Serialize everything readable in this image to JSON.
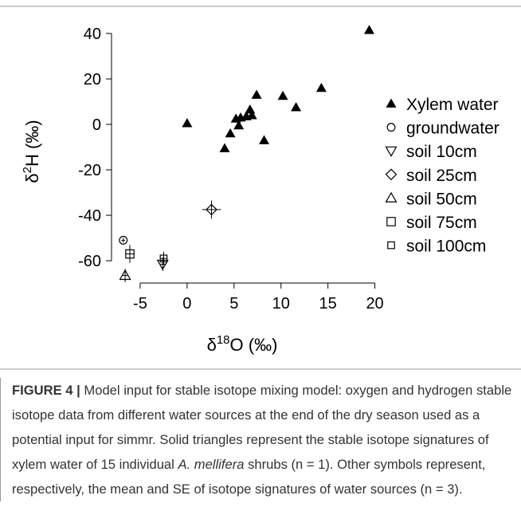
{
  "chart_data": {
    "type": "scatter",
    "x_label": {
      "prefix": "δ",
      "sup": "18",
      "suffix": "O (‰)"
    },
    "y_label": {
      "prefix": "δ",
      "sup": "2",
      "suffix": "H (‰)"
    },
    "xlim": [
      -8.05,
      20.8
    ],
    "ylim": [
      -69.8,
      44.2
    ],
    "xticks": [
      -5,
      0,
      5,
      10,
      15,
      20
    ],
    "yticks": [
      -60,
      -40,
      -20,
      0,
      20,
      40
    ],
    "series": [
      {
        "name": "Xylem water",
        "marker": "triangle-filled",
        "color": "#000000",
        "x": [
          0,
          4,
          4.6,
          5.2,
          5.5,
          5.7,
          6.3,
          6.7,
          6.9,
          7.4,
          8.2,
          10.2,
          11.6,
          14.3,
          19.4
        ],
        "values": [
          0.5,
          -10.5,
          -4,
          2.5,
          -0.5,
          3,
          3.5,
          6.5,
          4,
          13,
          -7,
          12.5,
          7.5,
          16,
          41.5
        ]
      },
      {
        "name": "groundwater",
        "marker": "circle",
        "color": "#000000",
        "x": [
          -6.8
        ],
        "values": [
          -51
        ],
        "xerr": [
          0.2
        ],
        "yerr": [
          1
        ]
      },
      {
        "name": "soil 10cm",
        "marker": "triangle-down",
        "color": "#000000",
        "x": [
          -2.6
        ],
        "values": [
          -61.5
        ],
        "xerr": [
          0.3
        ],
        "yerr": [
          3
        ]
      },
      {
        "name": "soil 25cm",
        "marker": "diamond",
        "color": "#000000",
        "x": [
          2.6
        ],
        "values": [
          -37.5
        ],
        "xerr": [
          1
        ],
        "yerr": [
          4
        ]
      },
      {
        "name": "soil 50cm",
        "marker": "triangle-up",
        "color": "#000000",
        "x": [
          -6.6
        ],
        "values": [
          -66.5
        ],
        "xerr": [
          0.3
        ],
        "yerr": [
          3
        ]
      },
      {
        "name": "soil 75cm",
        "marker": "square",
        "color": "#000000",
        "x": [
          -6.1
        ],
        "values": [
          -57
        ],
        "xerr": [
          0.5
        ],
        "yerr": [
          4
        ]
      },
      {
        "name": "soil 100cm",
        "marker": "square-small",
        "color": "#000000",
        "x": [
          -2.5
        ],
        "values": [
          -59
        ],
        "xerr": [
          0.3
        ],
        "yerr": [
          3
        ]
      }
    ]
  },
  "caption": {
    "label": "FIGURE 4 |",
    "text1": " Model input for stable isotope mixing model: oxygen and hydrogen stable isotope data from different water sources at the end of the dry season used as a potential input for simmr. Solid triangles represent the stable isotope signatures of xylem water of 15 individual ",
    "italic": "A. mellifera",
    "text2": " shrubs (n = 1). Other symbols represent, respectively, the mean and SE of isotope signatures of water sources (n = 3)."
  }
}
